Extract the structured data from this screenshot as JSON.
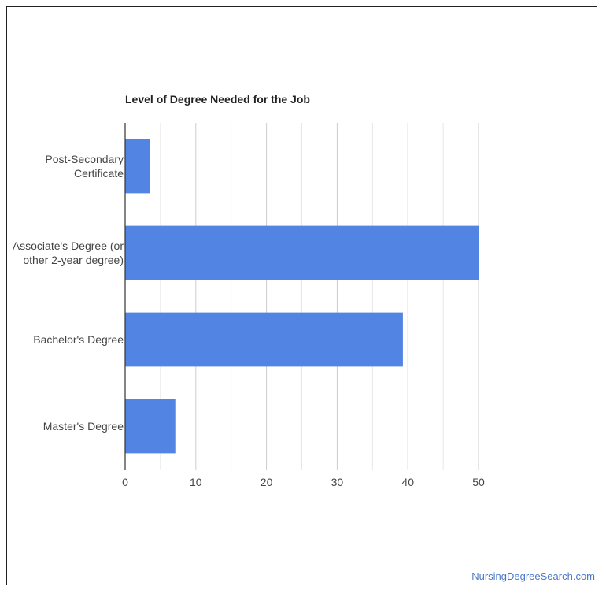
{
  "source": "NursingDegreeSearch.com",
  "colors": {
    "bar": "#5285e3",
    "grid": "#cccccc",
    "axis": "#333333",
    "label": "#444444",
    "watermark": "#4a79c9"
  },
  "chart_data": {
    "type": "bar",
    "orientation": "horizontal",
    "title": "Level of Degree Needed for the Job",
    "categories": [
      [
        "Post-Secondary",
        "Certificate"
      ],
      [
        "Associate's Degree (or",
        "other 2-year degree)"
      ],
      [
        "Bachelor's Degree"
      ],
      [
        "Master's Degree"
      ]
    ],
    "values": [
      3.5,
      50,
      39.3,
      7.1
    ],
    "xlabel": "",
    "ylabel": "",
    "xlim": [
      0,
      50
    ],
    "xticks": [
      0,
      10,
      20,
      30,
      40,
      50
    ],
    "grid": true,
    "legend": "none"
  }
}
